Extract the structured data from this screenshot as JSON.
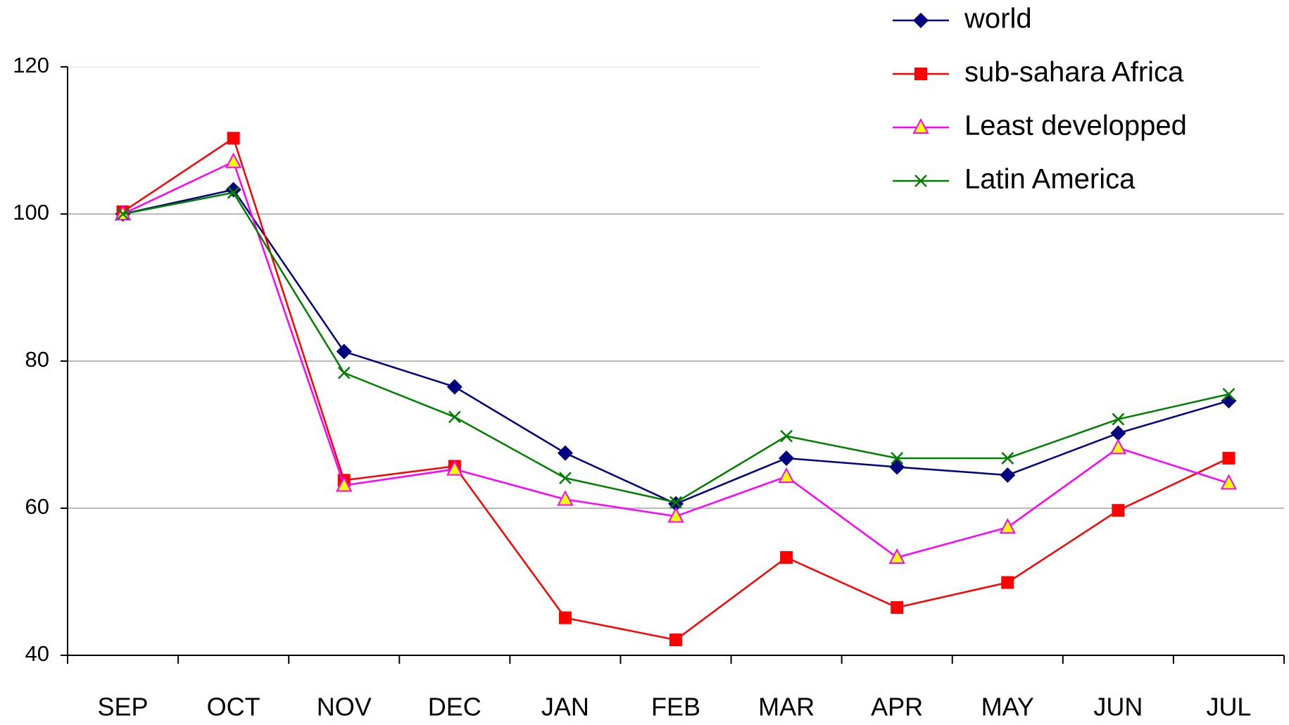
{
  "chart_data": {
    "type": "line",
    "categories": [
      "SEP",
      "OCT",
      "NOV",
      "DEC",
      "JAN",
      "FEB",
      "MAR",
      "APR",
      "MAY",
      "JUN",
      "JUL"
    ],
    "series": [
      {
        "name": "world",
        "color": "#000080",
        "marker": "diamond",
        "values": [
          100,
          103.3,
          81.3,
          76.5,
          67.5,
          60.6,
          66.8,
          65.6,
          64.5,
          70.2,
          74.6
        ]
      },
      {
        "name": "sub-sahara Africa",
        "color": "#ff0000",
        "marker": "square",
        "values": [
          100.3,
          110.3,
          63.8,
          65.7,
          45.1,
          42.1,
          53.3,
          46.5,
          49.9,
          59.7,
          66.8
        ]
      },
      {
        "name": "Least developped",
        "color": "#ff00ff",
        "marker": "triangle",
        "values": [
          100,
          107.1,
          63.1,
          65.3,
          61.2,
          58.9,
          64.3,
          53.3,
          57.4,
          68.2,
          63.4
        ]
      },
      {
        "name": "Latin America",
        "color": "#008000",
        "marker": "x",
        "values": [
          100,
          102.9,
          78.4,
          72.4,
          64.1,
          60.8,
          69.8,
          66.8,
          66.8,
          72.1,
          75.5
        ]
      }
    ],
    "ylim": [
      40,
      120
    ],
    "yticks": [
      40,
      60,
      80,
      100,
      120
    ],
    "grid": true,
    "legend": "upper right"
  }
}
